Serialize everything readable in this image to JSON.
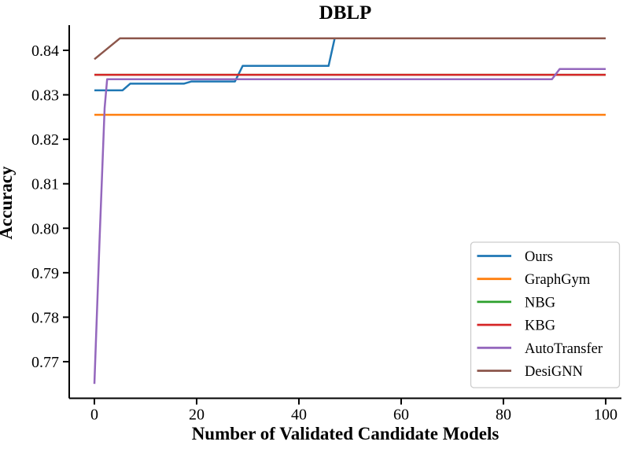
{
  "chart_data": {
    "type": "line",
    "title": "DBLP",
    "xlabel": "Number of Validated Candidate Models",
    "ylabel": "Accuracy",
    "xlim": [
      -4.92,
      103.08
    ],
    "ylim": [
      0.76177,
      0.84566
    ],
    "grid": false,
    "legend_position": "lower right",
    "background_color": "#ffffff",
    "spine_color": "#000000",
    "legend_border_color": "#cccccc",
    "x_tick_values": [
      0,
      20,
      40,
      60,
      80,
      100
    ],
    "x_tick_labels": [
      "0",
      "20",
      "40",
      "60",
      "80",
      "100"
    ],
    "y_tick_values": [
      0.77,
      0.78,
      0.79,
      0.8,
      0.81,
      0.82,
      0.83,
      0.84
    ],
    "y_tick_labels": [
      "0.77",
      "0.78",
      "0.79",
      "0.80",
      "0.81",
      "0.82",
      "0.83",
      "0.84"
    ],
    "series": [
      {
        "name": "Ours",
        "color": "#1f77b4",
        "points": [
          [
            0,
            0.831
          ],
          [
            5.5,
            0.831
          ],
          [
            7,
            0.8325
          ],
          [
            17.5,
            0.8325
          ],
          [
            19,
            0.833
          ],
          [
            27.5,
            0.833
          ],
          [
            29,
            0.8365
          ],
          [
            45.8,
            0.8365
          ],
          [
            47,
            0.8427
          ],
          [
            100,
            0.8427
          ]
        ]
      },
      {
        "name": "GraphGym",
        "color": "#ff7f0e",
        "points": [
          [
            0,
            0.8255
          ],
          [
            100,
            0.8255
          ]
        ]
      },
      {
        "name": "NBG",
        "color": "#2ca02c",
        "points": [
          [
            0,
            0.8345
          ],
          [
            100,
            0.8345
          ]
        ]
      },
      {
        "name": "KBG",
        "color": "#d62728",
        "points": [
          [
            0,
            0.8345
          ],
          [
            100,
            0.8345
          ]
        ]
      },
      {
        "name": "AutoTransfer",
        "color": "#9467bd",
        "points": [
          [
            0,
            0.765
          ],
          [
            1,
            0.797
          ],
          [
            2,
            0.827
          ],
          [
            2.5,
            0.8335
          ],
          [
            89.5,
            0.8335
          ],
          [
            91,
            0.8358
          ],
          [
            100,
            0.8358
          ]
        ]
      },
      {
        "name": "DesiGNN",
        "color": "#8c564b",
        "points": [
          [
            0,
            0.838
          ],
          [
            5,
            0.8427
          ],
          [
            100,
            0.8427
          ]
        ]
      }
    ]
  }
}
